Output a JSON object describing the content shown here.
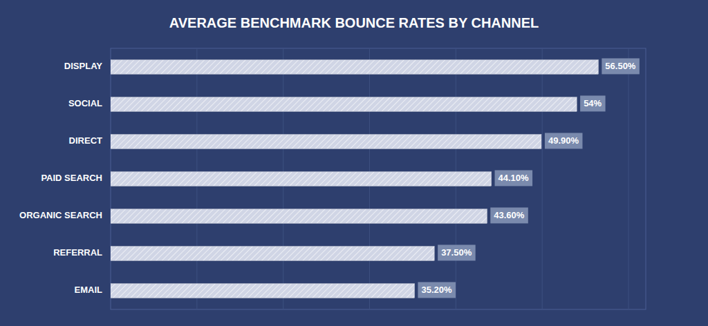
{
  "chart_data": {
    "type": "bar",
    "orientation": "horizontal",
    "title": "AVERAGE BENCHMARK BOUNCE RATES BY CHANNEL",
    "categories": [
      "DISPLAY",
      "SOCIAL",
      "DIRECT",
      "PAID SEARCH",
      "ORGANIC SEARCH",
      "REFERRAL",
      "EMAIL"
    ],
    "values": [
      56.5,
      54.0,
      49.9,
      44.1,
      43.6,
      37.5,
      35.2
    ],
    "value_labels": [
      "56.50%",
      "54%",
      "49.90%",
      "44.10%",
      "43.60%",
      "37.50%",
      "35.20%"
    ],
    "data_labels": true,
    "color": "#d0d5e5",
    "xlim": [
      0,
      62
    ],
    "xticks": [
      10,
      20,
      30,
      40,
      50,
      60
    ],
    "grid": true,
    "tick_labels": "y"
  }
}
